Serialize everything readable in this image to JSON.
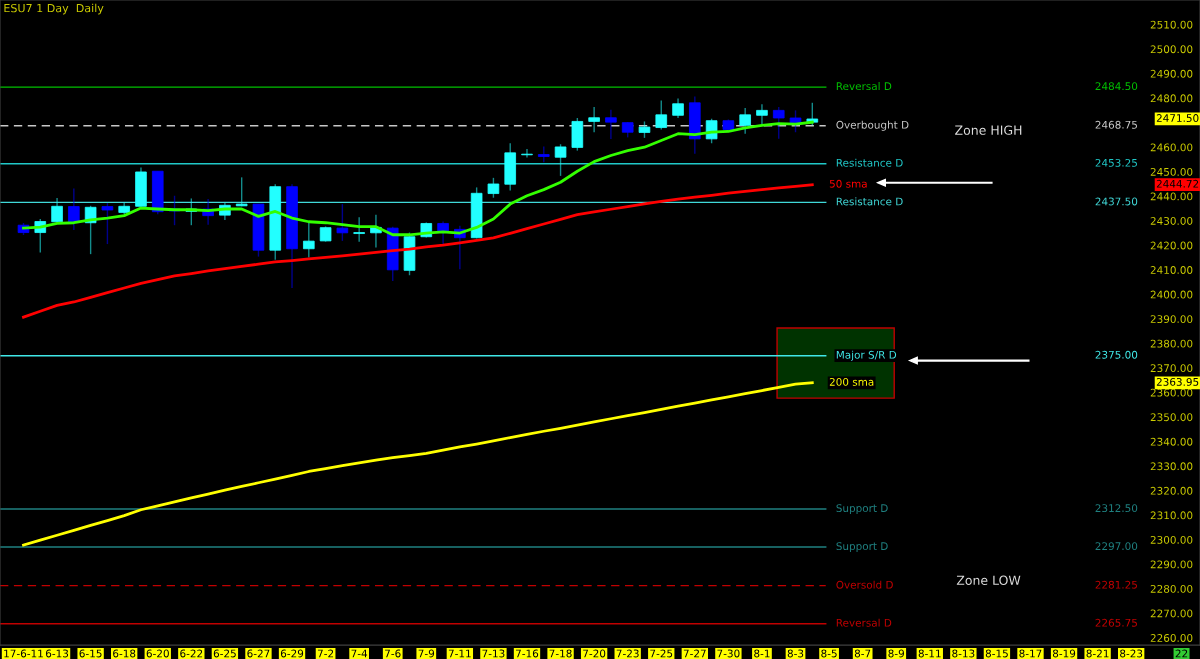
{
  "chart_data": {
    "type": "candlestick",
    "title": "ESU7 1 Day  Daily",
    "categories": [
      "17-6-11",
      null,
      "6-13",
      null,
      "6-15",
      null,
      "6-18",
      null,
      "6-20",
      null,
      "6-22",
      null,
      "6-25",
      null,
      "6-27",
      null,
      "6-29",
      null,
      "7-2",
      null,
      "7-4",
      null,
      "7-6",
      null,
      "7-9",
      null,
      "7-11",
      null,
      "7-13",
      null,
      "7-16",
      null,
      "7-18",
      null,
      "7-20",
      null,
      "7-23",
      null,
      "7-25",
      null,
      "7-27",
      null,
      "7-30",
      null,
      "8-1",
      null,
      "8-3",
      null,
      "8-5",
      null,
      "8-7",
      null,
      "8-9",
      null,
      "8-11",
      null,
      "8-13",
      null,
      "8-15",
      null,
      "8-17",
      null,
      "8-19",
      null,
      "8-21",
      null,
      "8-23",
      null,
      null,
      "22"
    ],
    "ohlc": [
      [
        2428.2,
        2429.1,
        2424.2,
        2425.2
      ],
      [
        2425.2,
        2430.7,
        2417.1,
        2429.7
      ],
      [
        2429.6,
        2439.3,
        2429.5,
        2435.9
      ],
      [
        2435.8,
        2443.2,
        2426.2,
        2429.6
      ],
      [
        2429.2,
        2436.1,
        2416.4,
        2435.5
      ],
      [
        2435.8,
        2437.2,
        2420.5,
        2434.4
      ],
      [
        2433.4,
        2437.4,
        2432.7,
        2435.9
      ],
      [
        2435.9,
        2451.7,
        2435.5,
        2449.9
      ],
      [
        2450.2,
        2450.2,
        2432.7,
        2433.7
      ],
      [
        2434.8,
        2440.2,
        2428.2,
        2434.0
      ],
      [
        2433.8,
        2439.1,
        2428.2,
        2434.8
      ],
      [
        2434.8,
        2438.9,
        2428.4,
        2432.1
      ],
      [
        2432.3,
        2437.2,
        2430.3,
        2436.3
      ],
      [
        2436.1,
        2447.7,
        2435.9,
        2436.8
      ],
      [
        2436.8,
        2436.8,
        2415.4,
        2418.0
      ],
      [
        2418.0,
        2444.9,
        2414.1,
        2443.9
      ],
      [
        2443.9,
        2444.9,
        2402.6,
        2418.6
      ],
      [
        2418.6,
        2429.6,
        2415.0,
        2421.7
      ],
      [
        2421.8,
        2427.7,
        2421.5,
        2427.2
      ],
      [
        2427.0,
        2436.8,
        2421.8,
        2425.1
      ],
      [
        2424.8,
        2431.4,
        2421.4,
        2425.2
      ],
      [
        2425.1,
        2432.5,
        2419.1,
        2427.3
      ],
      [
        2427.0,
        2427.6,
        2405.5,
        2410.0
      ],
      [
        2409.8,
        2425.2,
        2407.8,
        2423.5
      ],
      [
        2423.5,
        2429.3,
        2423.2,
        2428.9
      ],
      [
        2428.9,
        2429.7,
        2420.5,
        2425.9
      ],
      [
        2426.5,
        2428.0,
        2410.2,
        2423.1
      ],
      [
        2423.1,
        2443.6,
        2422.8,
        2441.2
      ],
      [
        2441.1,
        2447.5,
        2439.4,
        2445.0
      ],
      [
        2444.9,
        2461.6,
        2442.3,
        2457.7
      ],
      [
        2456.9,
        2459.3,
        2455.8,
        2457.1
      ],
      [
        2457.0,
        2460.3,
        2453.9,
        2456.2
      ],
      [
        2455.9,
        2461.2,
        2448.3,
        2460.1
      ],
      [
        2459.9,
        2471.9,
        2458.6,
        2470.5
      ],
      [
        2470.5,
        2476.4,
        2466.1,
        2472.0
      ],
      [
        2472.0,
        2475.3,
        2463.3,
        2470.2
      ],
      [
        2470.0,
        2470.2,
        2464.0,
        2466.1
      ],
      [
        2466.0,
        2470.5,
        2463.8,
        2468.2
      ],
      [
        2468.0,
        2479.0,
        2467.2,
        2473.2
      ],
      [
        2473.0,
        2479.8,
        2471.9,
        2477.7
      ],
      [
        2478.1,
        2480.7,
        2457.3,
        2463.4
      ],
      [
        2463.4,
        2471.6,
        2461.6,
        2470.8
      ],
      [
        2470.8,
        2471.3,
        2466.8,
        2467.2
      ],
      [
        2468.9,
        2476.0,
        2465.5,
        2473.2
      ],
      [
        2473.0,
        2477.5,
        2468.9,
        2475.0
      ],
      [
        2475.0,
        2476.4,
        2463.4,
        2471.9
      ],
      [
        2471.9,
        2475.0,
        2466.1,
        2470.0
      ],
      [
        2470.2,
        2478.1,
        2468.9,
        2471.5
      ],
      null,
      null,
      null,
      null,
      null,
      null,
      null,
      null,
      null,
      null,
      null,
      null,
      null,
      null,
      null,
      null,
      null,
      null,
      null,
      null,
      null,
      null
    ],
    "colors": [
      "#0000ff",
      "#22ffff",
      "#22ffff",
      "#0000ff",
      "#22ffff",
      "#0000ff",
      "#22ffff",
      "#22ffff",
      "#0000ff",
      "#0000ff",
      "#22ffff",
      "#0000ff",
      "#22ffff",
      "#22ffff",
      "#0000ff",
      "#22ffff",
      "#0000ff",
      "#22ffff",
      "#22ffff",
      "#0000ff",
      "#22ffff",
      "#22ffff",
      "#0000ff",
      "#22ffff",
      "#22ffff",
      "#0000ff",
      "#0000ff",
      "#22ffff",
      "#22ffff",
      "#22ffff",
      "#22ffff",
      "#0000ff",
      "#22ffff",
      "#22ffff",
      "#22ffff",
      "#0000ff",
      "#0000ff",
      "#22ffff",
      "#22ffff",
      "#22ffff",
      "#0000ff",
      "#22ffff",
      "#0000ff",
      "#22ffff",
      "#22ffff",
      "#0000ff",
      "#0000ff",
      "#22ffff",
      null,
      null,
      null,
      null,
      null,
      null,
      null,
      null,
      null,
      null,
      null,
      null,
      null,
      null,
      null,
      null,
      null,
      null,
      null,
      null,
      null,
      null
    ],
    "series": [
      {
        "type": "line",
        "color": "#33ff00",
        "values": [
          2427.0,
          2427.4,
          2428.9,
          2429.2,
          2430.4,
          2431.1,
          2432.1,
          2435.2,
          2434.8,
          2434.5,
          2434.5,
          2434.1,
          2434.8,
          2434.8,
          2431.8,
          2433.8,
          2431.1,
          2429.6,
          2429.2,
          2428.4,
          2427.6,
          2427.6,
          2424.3,
          2424.3,
          2425.0,
          2425.5,
          2425.0,
          2427.3,
          2430.7,
          2436.8,
          2440.2,
          2442.7,
          2445.7,
          2450.2,
          2454.1,
          2456.6,
          2458.6,
          2460.0,
          2462.7,
          2465.5,
          2465.1,
          2466.1,
          2466.4,
          2467.9,
          2468.9,
          2469.6,
          2469.4,
          2470.2,
          null,
          null,
          null,
          null,
          null,
          null,
          null,
          null,
          null,
          null,
          null,
          null,
          null,
          null,
          null,
          null,
          null,
          null,
          null,
          null,
          null,
          null
        ]
      },
      {
        "type": "line",
        "name": "50 sma",
        "color": "#ff0000",
        "values": [
          2390.7,
          2393.1,
          2395.5,
          2396.9,
          2398.8,
          2400.7,
          2402.6,
          2404.5,
          2406.0,
          2407.5,
          2408.5,
          2409.6,
          2410.5,
          2411.4,
          2412.3,
          2413.2,
          2413.8,
          2414.5,
          2415.1,
          2415.7,
          2416.4,
          2417.1,
          2417.8,
          2418.4,
          2419.4,
          2420.1,
          2421.0,
          2422.0,
          2423.0,
          2424.9,
          2426.8,
          2428.7,
          2430.6,
          2432.5,
          2433.6,
          2434.7,
          2435.8,
          2436.9,
          2437.9,
          2438.8,
          2439.6,
          2440.4,
          2441.3,
          2442.0,
          2442.7,
          2443.4,
          2444.0,
          2444.72,
          null,
          null,
          null,
          null,
          null,
          null,
          null,
          null,
          null,
          null,
          null,
          null,
          null,
          null,
          null,
          null,
          null,
          null,
          null,
          null,
          null,
          null
        ]
      },
      {
        "type": "line",
        "name": "200 sma",
        "color": "#ffff00",
        "values": [
          2297.8,
          2299.8,
          2301.8,
          2303.8,
          2305.8,
          2307.8,
          2309.8,
          2312.2,
          2313.8,
          2315.4,
          2317.0,
          2318.6,
          2320.2,
          2321.7,
          2323.2,
          2324.7,
          2326.2,
          2327.8,
          2329.0,
          2330.2,
          2331.3,
          2332.4,
          2333.4,
          2334.3,
          2335.2,
          2336.5,
          2337.8,
          2339.0,
          2340.3,
          2341.6,
          2342.9,
          2344.2,
          2345.4,
          2346.7,
          2348.0,
          2349.3,
          2350.6,
          2351.8,
          2353.1,
          2354.4,
          2355.7,
          2357.0,
          2358.2,
          2359.5,
          2360.8,
          2362.1,
          2363.4,
          2363.95,
          null,
          null,
          null,
          null,
          null,
          null,
          null,
          null,
          null,
          null,
          null,
          null,
          null,
          null,
          null,
          null,
          null,
          null,
          null,
          null,
          null,
          null
        ]
      }
    ],
    "ylim": [
      2257,
      2520
    ],
    "yticks": [
      {
        "value": 2260,
        "label": "2260.00"
      },
      {
        "value": 2270,
        "label": "2270.00"
      },
      {
        "value": 2280,
        "label": "2280.00"
      },
      {
        "value": 2290,
        "label": "2290.00"
      },
      {
        "value": 2300,
        "label": "2300.00"
      },
      {
        "value": 2310,
        "label": "2310.00"
      },
      {
        "value": 2320,
        "label": "2320.00"
      },
      {
        "value": 2330,
        "label": "2330.00"
      },
      {
        "value": 2340,
        "label": "2340.00"
      },
      {
        "value": 2350,
        "label": "2350.00"
      },
      {
        "value": 2360,
        "label": "2360.00"
      },
      {
        "value": 2370,
        "label": "2370.00"
      },
      {
        "value": 2380,
        "label": "2380.00"
      },
      {
        "value": 2390,
        "label": "2390.00"
      },
      {
        "value": 2400,
        "label": "2400.00"
      },
      {
        "value": 2410,
        "label": "2410.00"
      },
      {
        "value": 2420,
        "label": "2420.00"
      },
      {
        "value": 2430,
        "label": "2430.00"
      },
      {
        "value": 2440,
        "label": "2440.00"
      },
      {
        "value": 2450,
        "label": "2450.00"
      },
      {
        "value": 2460,
        "label": "2460.00"
      },
      {
        "value": 2480,
        "label": "2480.00"
      },
      {
        "value": 2490,
        "label": "2490.00"
      },
      {
        "value": 2500,
        "label": "2500.00"
      },
      {
        "value": 2510,
        "label": "2510.00"
      }
    ],
    "ref_lines": [
      {
        "axis": "y",
        "value": 2484.5,
        "label": "Reversal D",
        "color": "#00c000",
        "line_style": "solid"
      },
      {
        "axis": "y",
        "value": 2468.75,
        "label": "Overbought D",
        "color": "#c8c8c8",
        "line_style": "dashed"
      },
      {
        "axis": "y",
        "value": 2453.25,
        "label": "Resistance D",
        "color": "#20c8c8",
        "line_style": "solid"
      },
      {
        "axis": "y",
        "value": 2437.5,
        "label": "Resistance D",
        "color": "#40d8d8",
        "line_style": "solid"
      },
      {
        "axis": "y",
        "value": 2375.0,
        "label": "Major S/R D",
        "color": "#40e8e8",
        "line_style": "solid"
      },
      {
        "axis": "y",
        "value": 2312.5,
        "label": "Support D",
        "color": "#1f8080",
        "line_style": "solid"
      },
      {
        "axis": "y",
        "value": 2297.0,
        "label": "Support D",
        "color": "#1f8080",
        "line_style": "solid"
      },
      {
        "axis": "y",
        "value": 2281.25,
        "label": "Oversold D",
        "color": "#c00000",
        "line_style": "dashed"
      },
      {
        "axis": "y",
        "value": 2265.75,
        "label": "Reversal D",
        "color": "#c00000",
        "line_style": "solid"
      }
    ],
    "annotations": [
      "Zone HIGH",
      "Zone LOW",
      "2471.50",
      "2444.72",
      "2363.95",
      "2484.50",
      "2468.75",
      "2453.25",
      "2437.50",
      "2375.00",
      "2312.50",
      "2297.00",
      "2281.25",
      "2265.75"
    ],
    "legend": false,
    "grid": false
  }
}
